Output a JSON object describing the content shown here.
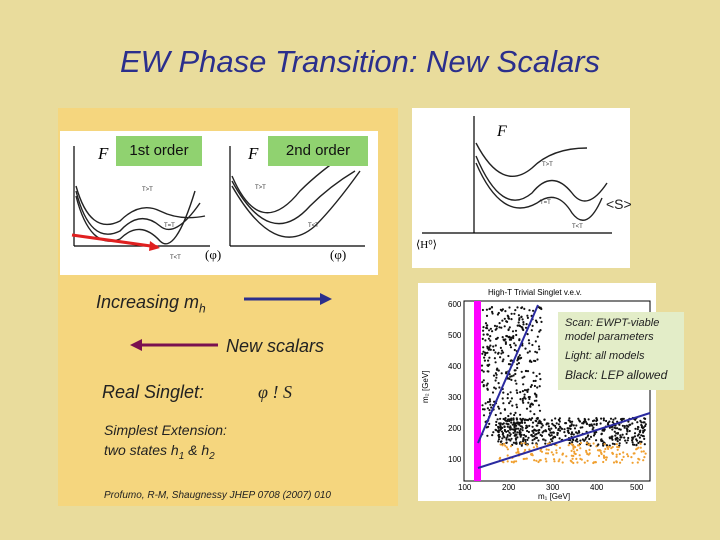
{
  "slide": {
    "title": "EW Phase Transition: New Scalars",
    "first_order_label": "1st order",
    "second_order_label": "2nd order",
    "plot_f_label": "F",
    "plot_phi_label": "(φ)",
    "increasing_mh_text": "Increasing m",
    "increasing_mh_sub": "h",
    "new_scalars_text": "New scalars",
    "real_singlet_label": "Real Singlet:",
    "real_singlet_value": "φ ! S",
    "simplest_line1": "Simplest Extension:",
    "simplest_line2_pre": "two states h",
    "simplest_line2_sub1": "1",
    "simplest_line2_mid": " & h",
    "simplest_line2_sub2": "2",
    "reference": "Profumo, R-M, Shaugnessy JHEP 0708 (2007) 010",
    "right_plot_f_label": "F",
    "right_plot_s_label": "<S>",
    "right_plot_h_label": "⟨H⁰⟩",
    "scan_title": "High-T Trivial Singlet v.e.v.",
    "scan_xlabel": "m₁ [GeV]",
    "scan_ylabel": "m₂ [GeV]",
    "scan_xticks": [
      "100",
      "200",
      "300",
      "400",
      "500"
    ],
    "scan_yticks": [
      "600",
      "500",
      "400",
      "300",
      "200",
      "100"
    ],
    "legend": {
      "line1": "Scan: EWPT-viable",
      "line2": "model parameters",
      "line3": "Light: all models",
      "line4": "Black: LEP allowed"
    },
    "curve_labels": {
      "t_gt_tc": "T>T",
      "t_eq_tc": "T=T",
      "t_lt_tc": "T<T",
      "sub": "c"
    }
  },
  "colors": {
    "title": "#2b2f8c",
    "background": "#e9dc9c",
    "panel": "#f5d67e",
    "tag": "#90d270",
    "arrow_right": "#2b2f8c",
    "arrow_left": "#7a1050",
    "red_arrow": "#e02020",
    "magenta_band": "#ff00ff",
    "scan_line": "#2a2aa0",
    "light_points": "#f0a030"
  }
}
